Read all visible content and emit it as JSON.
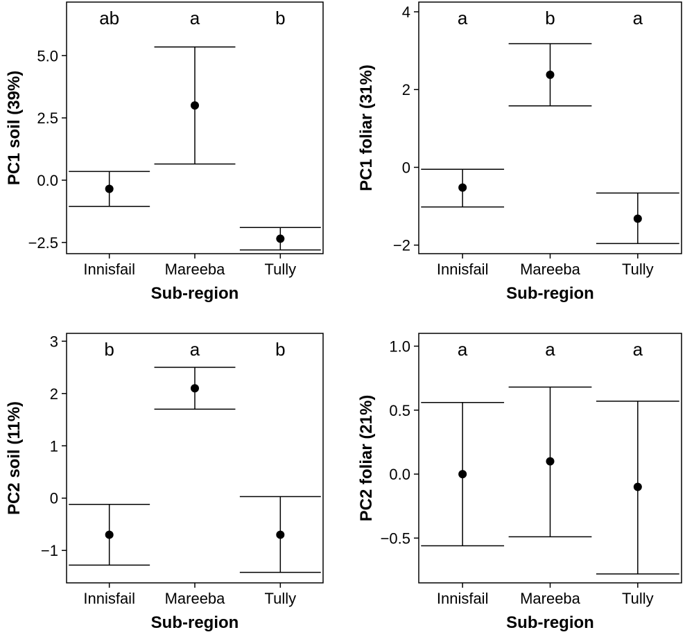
{
  "chart_data": [
    {
      "type": "scatter",
      "subtype": "point-errorbar",
      "xlabel": "Sub-region",
      "ylabel": "PC1 soil (39%)",
      "categories": [
        "Innisfail",
        "Mareeba",
        "Tully"
      ],
      "values": [
        -0.35,
        3.0,
        -2.35
      ],
      "lower": [
        -1.05,
        0.65,
        -2.8
      ],
      "upper": [
        0.35,
        5.35,
        -1.9
      ],
      "letters": [
        "ab",
        "a",
        "b"
      ],
      "yticks": [
        -2.5,
        0.0,
        2.5,
        5.0
      ],
      "ytick_labels": [
        "−2.5",
        "0.0",
        "2.5",
        "5.0"
      ],
      "ylim": [
        -2.95,
        7.15
      ],
      "grid": false
    },
    {
      "type": "scatter",
      "subtype": "point-errorbar",
      "xlabel": "Sub-region",
      "ylabel": "PC1 foliar (31%)",
      "categories": [
        "Innisfail",
        "Mareeba",
        "Tully"
      ],
      "values": [
        -0.52,
        2.38,
        -1.32
      ],
      "lower": [
        -1.02,
        1.58,
        -1.96
      ],
      "upper": [
        -0.05,
        3.18,
        -0.66
      ],
      "letters": [
        "a",
        "b",
        "a"
      ],
      "yticks": [
        -2,
        0,
        2,
        4
      ],
      "ytick_labels": [
        "−2",
        "0",
        "2",
        "4"
      ],
      "ylim": [
        -2.22,
        4.25
      ],
      "grid": false
    },
    {
      "type": "scatter",
      "subtype": "point-errorbar",
      "xlabel": "Sub-region",
      "ylabel": "PC2 soil (11%)",
      "categories": [
        "Innisfail",
        "Mareeba",
        "Tully"
      ],
      "values": [
        -0.7,
        2.1,
        -0.7
      ],
      "lower": [
        -1.28,
        1.7,
        -1.42
      ],
      "upper": [
        -0.12,
        2.5,
        0.03
      ],
      "letters": [
        "b",
        "a",
        "b"
      ],
      "yticks": [
        -1,
        0,
        1,
        2,
        3
      ],
      "ytick_labels": [
        "−1",
        "0",
        "1",
        "2",
        "3"
      ],
      "ylim": [
        -1.62,
        3.15
      ],
      "grid": false
    },
    {
      "type": "scatter",
      "subtype": "point-errorbar",
      "xlabel": "Sub-region",
      "ylabel": "PC2 foliar (21%)",
      "categories": [
        "Innisfail",
        "Mareeba",
        "Tully"
      ],
      "values": [
        0.0,
        0.1,
        -0.1
      ],
      "lower": [
        -0.56,
        -0.49,
        -0.78
      ],
      "upper": [
        0.56,
        0.68,
        0.57
      ],
      "letters": [
        "a",
        "a",
        "a"
      ],
      "yticks": [
        -0.5,
        0.0,
        0.5,
        1.0
      ],
      "ytick_labels": [
        "−0.5",
        "0.0",
        "0.5",
        "1.0"
      ],
      "ylim": [
        -0.85,
        1.1
      ],
      "grid": false
    }
  ]
}
